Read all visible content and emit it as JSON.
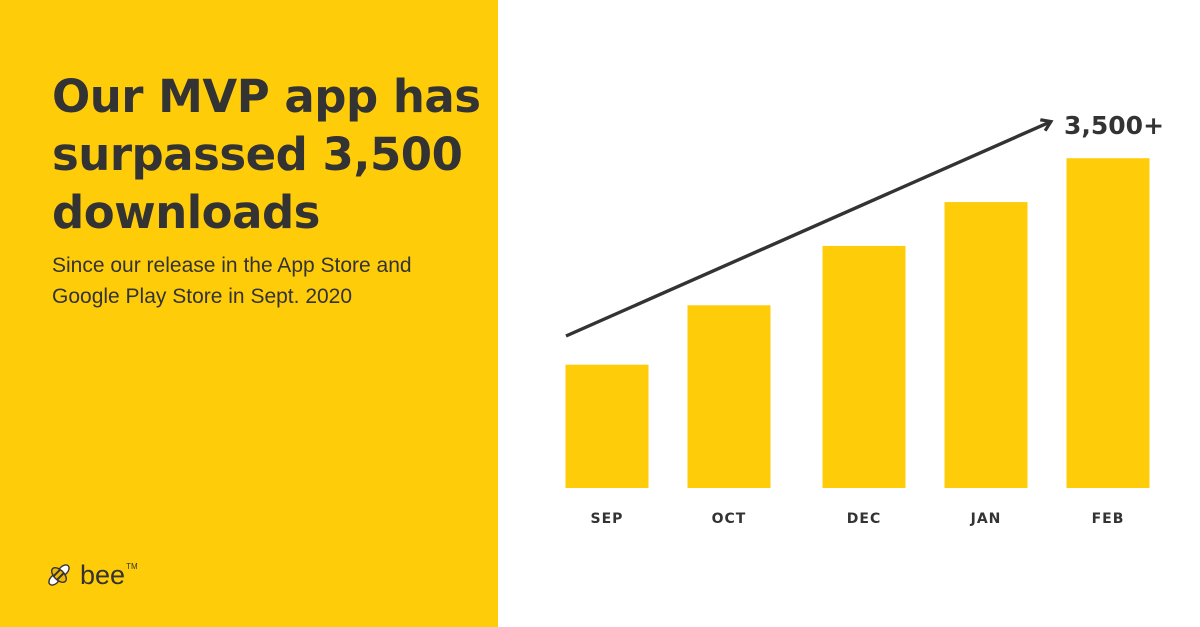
{
  "headline": "Our MVP app has surpassed 3,500 downloads",
  "subhead": "Since our release in the App Store and Google Play Store in Sept. 2020",
  "logo": {
    "text": "bee",
    "tm": "TM",
    "icon": "bee-icon"
  },
  "colors": {
    "brand_yellow": "#FFCC0A",
    "text_dark": "#333333",
    "background": "#FFFFFF"
  },
  "chart_data": {
    "type": "bar",
    "categories": [
      "SEP",
      "OCT",
      "DEC",
      "JAN",
      "FEB"
    ],
    "values": [
      1350,
      2000,
      2650,
      3130,
      3610
    ],
    "annotation": "3,500+",
    "trend_arrow": true,
    "ylim": [
      0,
      3700
    ],
    "grid": false,
    "bar_color": "#FFCC0A"
  }
}
